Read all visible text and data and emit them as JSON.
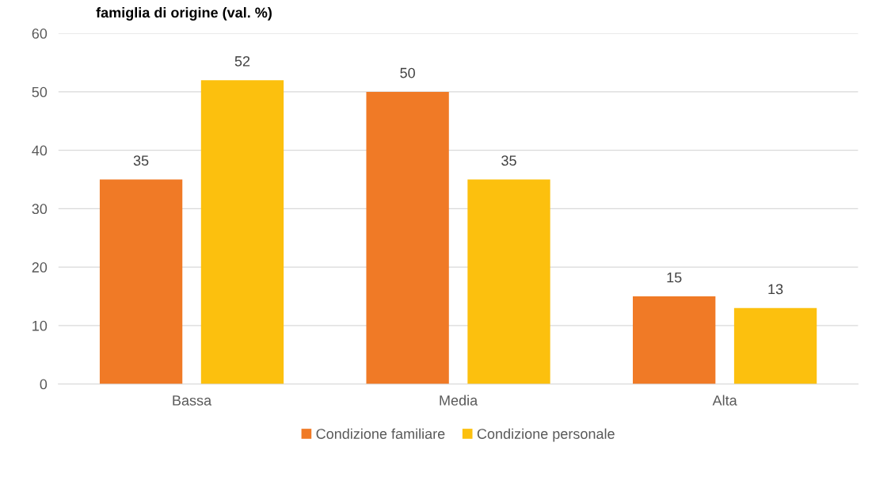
{
  "chart_data": {
    "type": "bar",
    "title": "famiglia di origine (val. %)",
    "categories": [
      "Bassa",
      "Media",
      "Alta"
    ],
    "series": [
      {
        "name": "Condizione familiare",
        "color": "#f07a26",
        "values": [
          35,
          50,
          15
        ]
      },
      {
        "name": "Condizione personale",
        "color": "#fcc00e",
        "values": [
          52,
          35,
          13
        ]
      }
    ],
    "ylim": [
      0,
      60
    ],
    "yticks": [
      0,
      10,
      20,
      30,
      40,
      50,
      60
    ],
    "grid": "y",
    "legend": "bottom",
    "data_labels": true
  }
}
